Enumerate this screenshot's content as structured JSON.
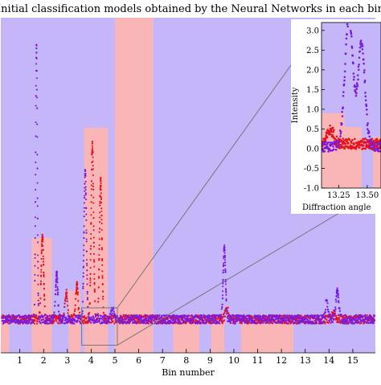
{
  "chart_data": {
    "type": "scatter",
    "title": "Initial classification models obtained by the Neural Networks in each bin",
    "xlabel": "Bin number",
    "ylabel": "",
    "xlim": [
      0.2,
      15.95
    ],
    "ylim": [
      -0.35,
      3.15
    ],
    "xticks": [
      1,
      2,
      3,
      4,
      5,
      6,
      7,
      8,
      9,
      10,
      11,
      12,
      13,
      14,
      15
    ],
    "colors": {
      "class_a_region": "#c4b6f8",
      "class_b_region": "#fab6b6",
      "series_red": "#e8101a",
      "series_purple": "#7a1ae0",
      "zoom_guide": "#777777"
    },
    "background_bands": [
      {
        "from": 0.2,
        "to": 5.0,
        "class": "a"
      },
      {
        "from": 5.0,
        "to": 6.6,
        "class": "b"
      },
      {
        "from": 6.6,
        "to": 15.95,
        "class": "a"
      },
      {
        "from": 0.2,
        "to": 0.55,
        "class": "b",
        "ymax": -0.02
      },
      {
        "from": 1.5,
        "to": 2.35,
        "class": "b",
        "ymax": 0.85
      },
      {
        "from": 3.05,
        "to": 3.55,
        "class": "b",
        "ymax": 0.3
      },
      {
        "from": 3.7,
        "to": 4.7,
        "class": "b",
        "ymax": 2.0
      },
      {
        "from": 7.45,
        "to": 8.55,
        "class": "b",
        "ymax": -0.02
      },
      {
        "from": 9.05,
        "to": 9.6,
        "class": "b",
        "ymax": -0.02
      },
      {
        "from": 10.3,
        "to": 12.5,
        "class": "b",
        "ymax": -0.02
      }
    ],
    "series": [
      {
        "color": "red",
        "baseline": 0.0,
        "peaks": [
          [
            1.95,
            0.88,
            0.05
          ],
          [
            2.95,
            0.28,
            0.05
          ],
          [
            3.4,
            0.35,
            0.05
          ],
          [
            4.05,
            1.82,
            0.05
          ],
          [
            4.4,
            1.45,
            0.05
          ],
          [
            9.7,
            0.12,
            0.06
          ],
          [
            14.2,
            0.08,
            0.06
          ]
        ]
      },
      {
        "color": "purple",
        "baseline": 0.0,
        "peaks": [
          [
            1.7,
            2.85,
            0.035
          ],
          [
            2.55,
            0.48,
            0.045
          ],
          [
            3.75,
            1.55,
            0.05
          ],
          [
            4.9,
            0.1,
            0.06
          ],
          [
            9.6,
            0.75,
            0.05
          ],
          [
            13.9,
            0.18,
            0.05
          ],
          [
            14.35,
            0.3,
            0.06
          ]
        ]
      }
    ],
    "zoom_box": {
      "x": [
        3.6,
        5.1
      ],
      "y": [
        -0.27,
        0.12
      ]
    },
    "inset": {
      "ylabel": "Intensity",
      "xlabel": "Diffraction angle",
      "xlim": [
        13.1,
        13.62
      ],
      "ylim": [
        -1.0,
        3.2
      ],
      "xticks": [
        13.25,
        13.5
      ],
      "yticks": [
        -1.0,
        -0.5,
        0.0,
        0.5,
        1.0,
        1.5,
        2.0,
        2.5,
        3.0
      ]
    }
  }
}
